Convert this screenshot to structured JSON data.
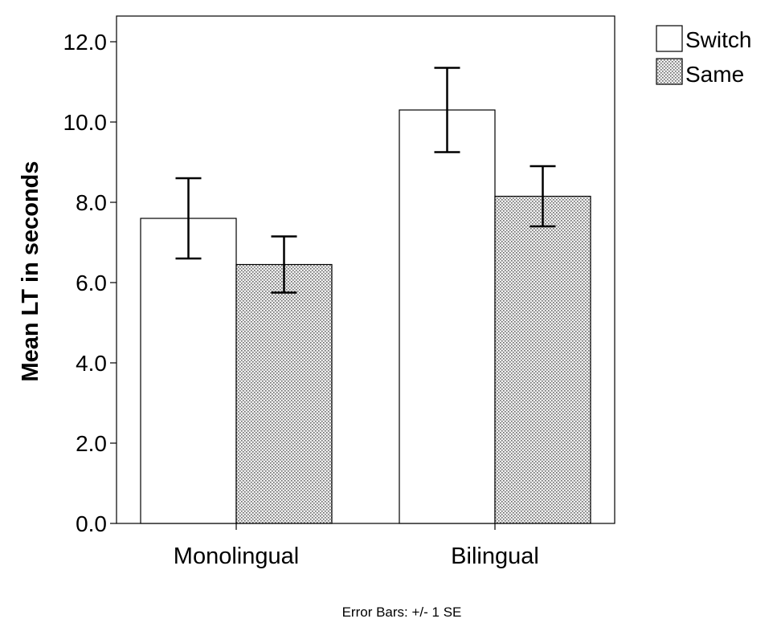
{
  "chart_data": {
    "type": "bar",
    "categories": [
      "Monolingual",
      "Bilingual"
    ],
    "series": [
      {
        "name": "Switch",
        "values": [
          7.6,
          10.3
        ],
        "error": [
          1.0,
          1.05
        ],
        "fill": "#ffffff",
        "pattern": "none"
      },
      {
        "name": "Same",
        "values": [
          6.45,
          8.15
        ],
        "error": [
          0.7,
          0.75
        ],
        "fill": "#d9d9d9",
        "pattern": "dots"
      }
    ],
    "ylabel": "Mean LT in seconds",
    "xlabel": "",
    "ylim": [
      0,
      12.5
    ],
    "yticks": [
      "0.0",
      "2.0",
      "4.0",
      "6.0",
      "8.0",
      "10.0",
      "12.0"
    ],
    "ytick_values": [
      0,
      2,
      4,
      6,
      8,
      10,
      12
    ],
    "legend_position": "top-right (outside plot)",
    "grid": false,
    "footnote": "Error Bars: +/- 1 SE"
  }
}
